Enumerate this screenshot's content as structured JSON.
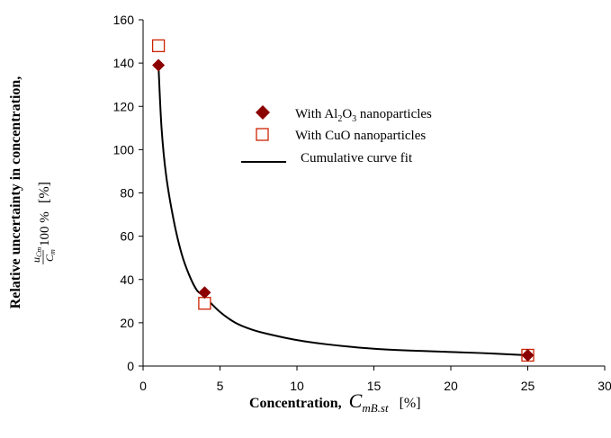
{
  "chart_data": {
    "type": "scatter",
    "xlabel": "Concentration,",
    "xlabel_symbol": "C",
    "xlabel_subscript": "mB.st",
    "xlabel_unit": "[%]",
    "ylabel": "Relative uncertainty in concentration,",
    "ylabel_formula_num_main": "u",
    "ylabel_formula_num_sub": "Cm",
    "ylabel_formula_den_main": "C",
    "ylabel_formula_den_sub": "m",
    "ylabel_formula_tail": "100 %",
    "ylabel_unit": "[%]",
    "xlim": [
      0,
      30
    ],
    "ylim": [
      0,
      160
    ],
    "x_ticks": [
      "0",
      "5",
      "10",
      "15",
      "20",
      "25",
      "30"
    ],
    "y_ticks": [
      "0",
      "20",
      "40",
      "60",
      "80",
      "100",
      "120",
      "140",
      "160"
    ],
    "grid": false,
    "legend_position": "upper-right",
    "series": [
      {
        "name_parts": [
          "With Al",
          "2",
          "O",
          "3",
          " nanoparticles"
        ],
        "marker": "filled-diamond",
        "color": "#8b0000",
        "x": [
          1,
          4,
          25
        ],
        "y": [
          139,
          34,
          5
        ]
      },
      {
        "name_parts": [
          "With CuO nanoparticles"
        ],
        "marker": "open-square",
        "color": "#cc2200",
        "x": [
          1,
          4,
          25
        ],
        "y": [
          148,
          29,
          5
        ]
      },
      {
        "name_parts": [
          "Cumulative curve fit"
        ],
        "marker": "line",
        "color": "#000000",
        "x": [
          1,
          1.2,
          1.5,
          2,
          2.5,
          3,
          3.5,
          4,
          5,
          6,
          7,
          8,
          10,
          12,
          15,
          18,
          22,
          25
        ],
        "y": [
          139,
          110,
          88,
          67,
          52,
          42,
          35,
          32,
          25,
          20,
          17,
          15,
          12,
          10,
          8,
          7,
          6,
          5
        ]
      }
    ]
  }
}
